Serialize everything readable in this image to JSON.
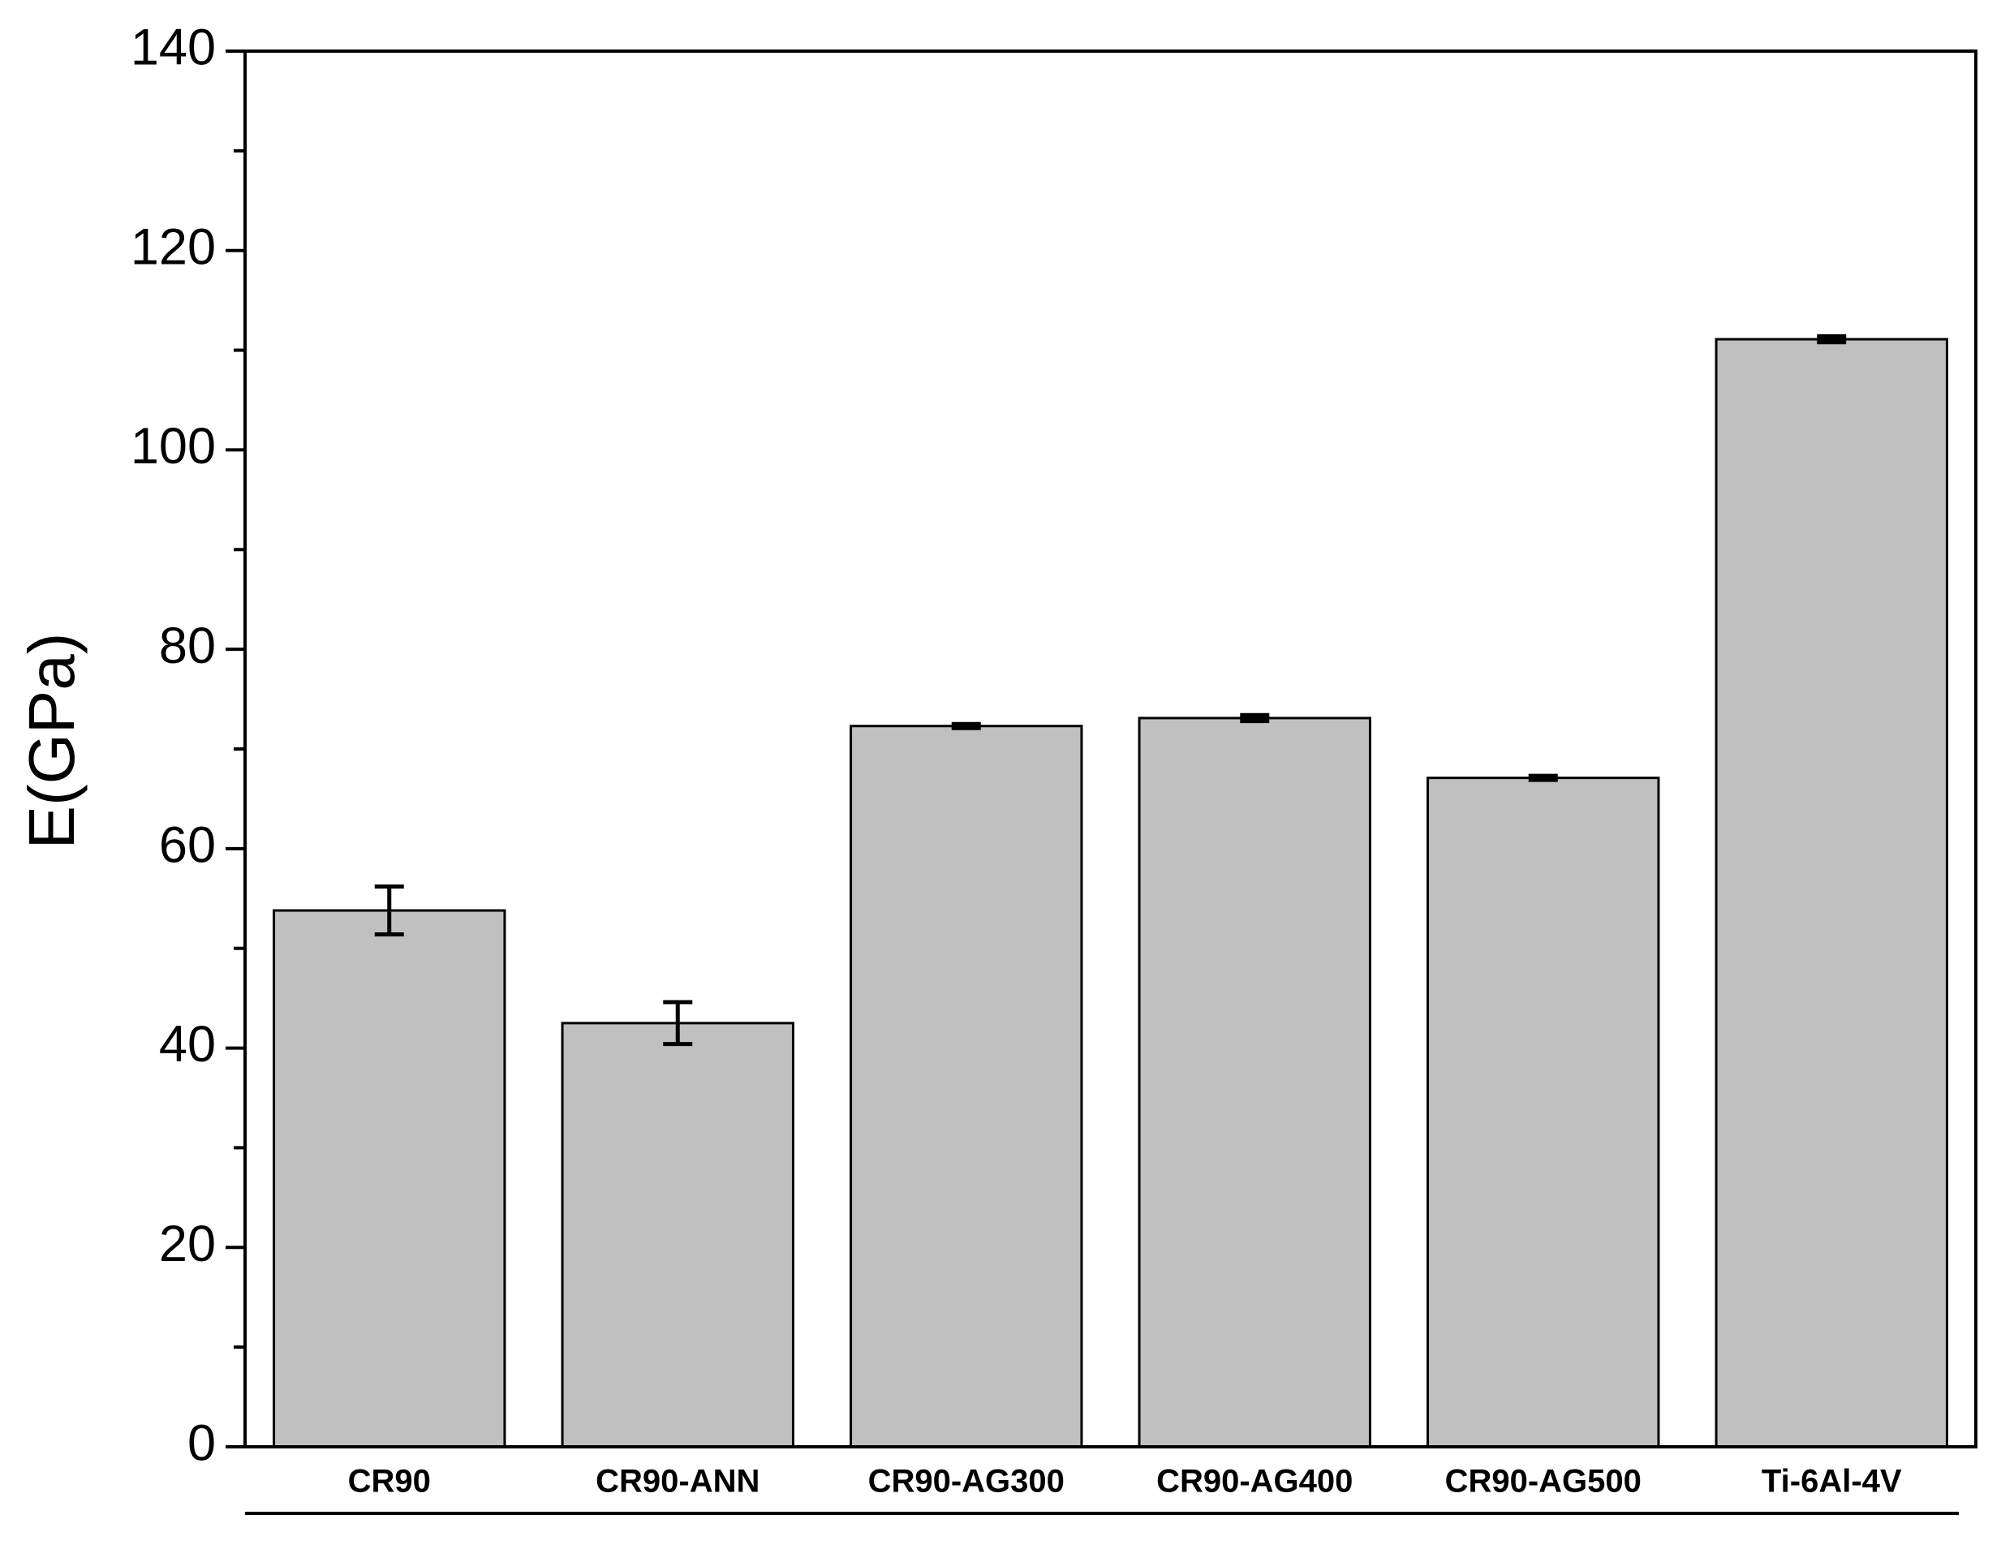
{
  "chart_data": {
    "type": "bar",
    "y_label": "E(GPa)",
    "categories": [
      "CR90",
      "CR90-ANN",
      "CR90-AG300",
      "CR90-AG400",
      "CR90-AG500",
      "Ti-6Al-4V"
    ],
    "values": [
      53.8,
      42.5,
      72.3,
      73.1,
      67.1,
      111.1
    ],
    "errors": [
      2.4,
      2.1,
      0.2,
      0.3,
      0.2,
      0.3
    ],
    "color": "#c0c0c0",
    "ylim": [
      0,
      140
    ],
    "yticks": [
      0,
      20,
      40,
      60,
      80,
      100,
      120,
      140
    ],
    "grid": false
  }
}
